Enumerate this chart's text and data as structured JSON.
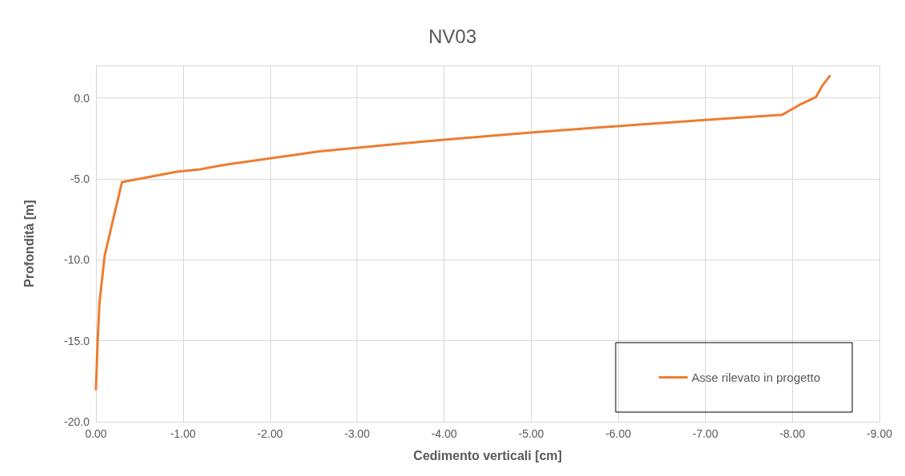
{
  "chart_data": {
    "type": "line",
    "title": "NV03",
    "xlabel": "Cedimento verticali [cm]",
    "ylabel": "Profondità [m]",
    "series": [
      {
        "name": "Asse rilevato in progetto",
        "color": "#ed7d31",
        "x": [
          -8.43,
          -8.35,
          -8.27,
          -8.08,
          -7.88,
          -7.16,
          -6.24,
          -4.96,
          -3.86,
          -2.57,
          -1.5,
          -1.2,
          -0.93,
          -0.3,
          -0.22,
          -0.1,
          -0.04,
          -0.02,
          0.0
        ],
        "values": [
          1.35,
          0.8,
          0.05,
          -0.44,
          -1.05,
          -1.3,
          -1.65,
          -2.15,
          -2.65,
          -3.3,
          -4.12,
          -4.41,
          -4.56,
          -5.2,
          -7.0,
          -9.75,
          -12.7,
          -15.0,
          -18.0
        ]
      }
    ],
    "xlim": [
      0,
      -9
    ],
    "xticks": [
      {
        "value": 0,
        "label": "0.00"
      },
      {
        "value": -1,
        "label": "-1.00"
      },
      {
        "value": -2,
        "label": "-2.00"
      },
      {
        "value": -3,
        "label": "-3.00"
      },
      {
        "value": -4,
        "label": "-4.00"
      },
      {
        "value": -5,
        "label": "-5.00"
      },
      {
        "value": -6,
        "label": "-6.00"
      },
      {
        "value": -7,
        "label": "-7.00"
      },
      {
        "value": -8,
        "label": "-8.00"
      },
      {
        "value": -9,
        "label": "-9.00"
      }
    ],
    "ylim": [
      -20,
      2
    ],
    "yticks": [
      {
        "value": -20,
        "label": "-20.0"
      },
      {
        "value": -15,
        "label": "-15.0"
      },
      {
        "value": -10,
        "label": "-10.0"
      },
      {
        "value": -5,
        "label": "-5.0"
      },
      {
        "value": 0,
        "label": "0.0"
      },
      {
        "value": 2,
        "label": null
      }
    ],
    "grid": true,
    "legend": "bottom right",
    "marker": "none",
    "line_style": "solid"
  }
}
